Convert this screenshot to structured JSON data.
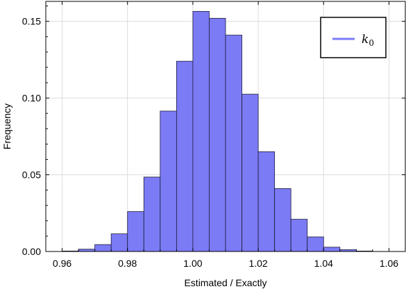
{
  "chart_data": {
    "type": "bar",
    "xlabel": "Estimated / Exactly",
    "ylabel": "Frequency",
    "xlim": [
      0.955,
      1.065
    ],
    "ylim": [
      0,
      0.163
    ],
    "xticks": [
      0.96,
      0.98,
      1.0,
      1.02,
      1.04,
      1.06
    ],
    "xtick_labels": [
      "0.96",
      "0.98",
      "1.00",
      "1.02",
      "1.04",
      "1.06"
    ],
    "yticks": [
      0.0,
      0.05,
      0.1,
      0.15
    ],
    "ytick_labels": [
      "0.00",
      "0.05",
      "0.10",
      "0.15"
    ],
    "grid": true,
    "legend_position": "top-right",
    "bar_color": "#7b7bf5",
    "bar_edge_color": "#1a1a3a",
    "bin_width": 0.005,
    "bins": [
      0.96,
      0.965,
      0.97,
      0.975,
      0.98,
      0.985,
      0.99,
      0.995,
      1.0,
      1.005,
      1.01,
      1.015,
      1.02,
      1.025,
      1.03,
      1.035,
      1.04,
      1.045,
      1.05
    ],
    "series": [
      {
        "name": "k",
        "name_subscript": "0",
        "values": [
          0.0003,
          0.0015,
          0.0045,
          0.0115,
          0.026,
          0.0485,
          0.0915,
          0.124,
          0.1565,
          0.152,
          0.141,
          0.1025,
          0.065,
          0.041,
          0.021,
          0.0095,
          0.0028,
          0.0012,
          0.0003
        ]
      }
    ]
  }
}
